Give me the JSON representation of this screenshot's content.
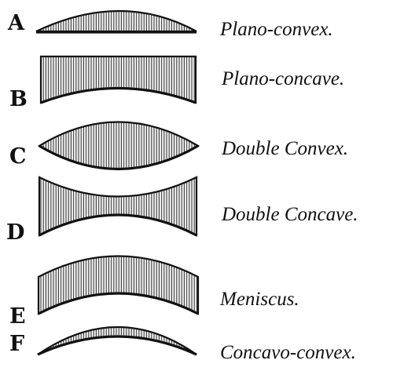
{
  "lenses": [
    {
      "letter": "A",
      "name": "Plano-convex."
    },
    {
      "letter": "B",
      "name": "Plano-concave."
    },
    {
      "letter": "C",
      "name": "Double Convex."
    },
    {
      "letter": "D",
      "name": "Double Concave."
    },
    {
      "letter": "E",
      "name": "Meniscus."
    },
    {
      "letter": "F",
      "name": "Concavo-convex."
    }
  ]
}
